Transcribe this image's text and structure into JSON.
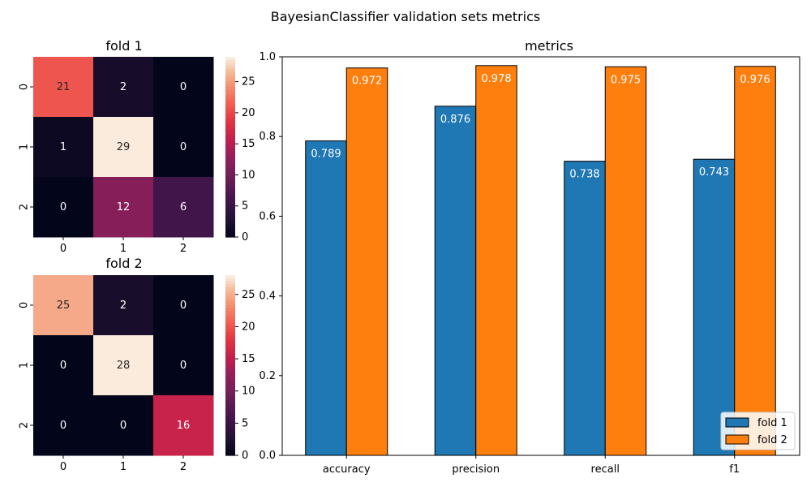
{
  "figure": {
    "suptitle": "BayesianClassifier validation sets metrics"
  },
  "chart_data": [
    {
      "type": "heatmap",
      "title": "fold 1",
      "x_ticks": [
        "0",
        "1",
        "2"
      ],
      "y_ticks": [
        "0",
        "1",
        "2"
      ],
      "values": [
        [
          21,
          2,
          0
        ],
        [
          1,
          29,
          0
        ],
        [
          0,
          12,
          6
        ]
      ],
      "colormap": "rocket",
      "colorbar": {
        "min": 0,
        "max": 29,
        "ticks": [
          0,
          5,
          10,
          15,
          20,
          25
        ]
      }
    },
    {
      "type": "heatmap",
      "title": "fold 2",
      "x_ticks": [
        "0",
        "1",
        "2"
      ],
      "y_ticks": [
        "0",
        "1",
        "2"
      ],
      "values": [
        [
          25,
          2,
          0
        ],
        [
          0,
          28,
          0
        ],
        [
          0,
          0,
          16
        ]
      ],
      "colormap": "rocket",
      "colorbar": {
        "min": 0,
        "max": 28,
        "ticks": [
          0,
          5,
          10,
          15,
          20,
          25
        ]
      }
    },
    {
      "type": "bar",
      "title": "metrics",
      "categories": [
        "accuracy",
        "precision",
        "recall",
        "f1"
      ],
      "series": [
        {
          "name": "fold 1",
          "values": [
            0.789,
            0.876,
            0.738,
            0.743
          ],
          "color": "#1f77b4"
        },
        {
          "name": "fold 2",
          "values": [
            0.972,
            0.978,
            0.975,
            0.976
          ],
          "color": "#ff7f0e"
        }
      ],
      "value_labels": [
        [
          "0.789",
          "0.876",
          "0.738",
          "0.743"
        ],
        [
          "0.972",
          "0.978",
          "0.975",
          "0.976"
        ]
      ],
      "ylim": [
        0,
        1.0
      ],
      "y_ticks": [
        "0.0",
        "0.2",
        "0.4",
        "0.6",
        "0.8",
        "1.0"
      ],
      "legend": "lower-right",
      "grid": false
    }
  ]
}
